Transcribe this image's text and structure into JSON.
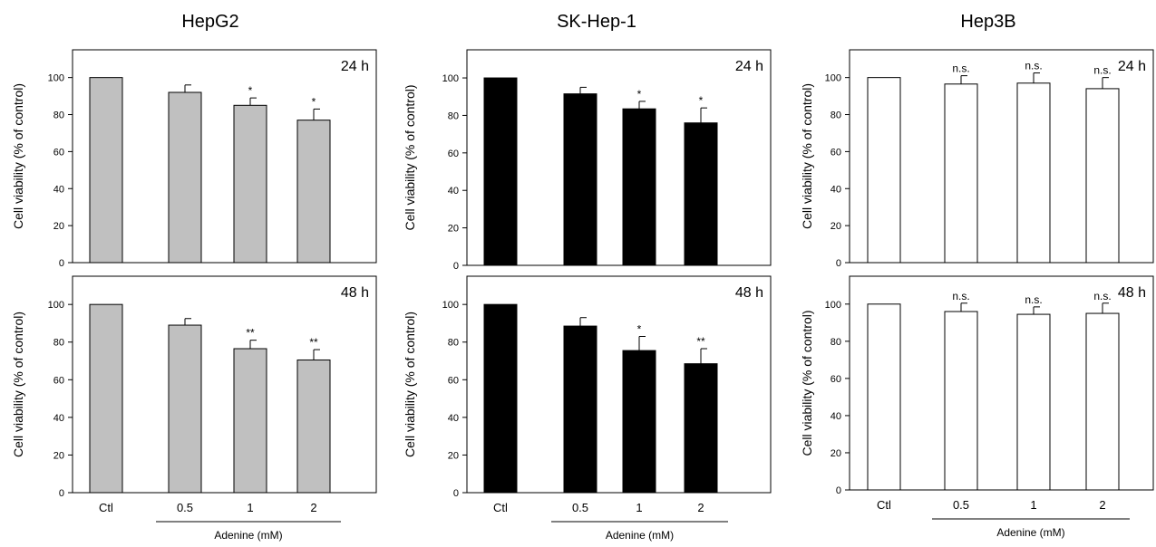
{
  "chart_data": [
    {
      "type": "bar",
      "column_title": "HepG2",
      "time_label": "24 h",
      "categories": [
        "Ctl",
        "0.5",
        "1",
        "2"
      ],
      "values": [
        100,
        92,
        85,
        77
      ],
      "errors": [
        0,
        4,
        4,
        6
      ],
      "significance": [
        "",
        "",
        "*",
        "*"
      ],
      "ylabel": "Cell viability (% of control)",
      "ylim": [
        0,
        115
      ],
      "yticks": [
        0,
        20,
        40,
        60,
        80,
        100
      ],
      "bar_color": "#c0c0c0"
    },
    {
      "type": "bar",
      "column_title": "SK-Hep-1",
      "time_label": "24 h",
      "categories": [
        "Ctl",
        "0.5",
        "1",
        "2"
      ],
      "values": [
        100,
        91.5,
        83.5,
        76
      ],
      "errors": [
        0,
        3.5,
        4,
        8
      ],
      "significance": [
        "",
        "",
        "*",
        "*"
      ],
      "ylabel": "Cell viability (% of control)",
      "ylim": [
        0,
        115
      ],
      "yticks": [
        0,
        20,
        40,
        60,
        80,
        100
      ],
      "bar_color": "#000000"
    },
    {
      "type": "bar",
      "column_title": "Hep3B",
      "time_label": "24 h",
      "categories": [
        "Ctl",
        "0.5",
        "1",
        "2"
      ],
      "values": [
        100,
        96.5,
        97,
        94
      ],
      "errors": [
        0,
        4.5,
        5.5,
        6
      ],
      "significance": [
        "",
        "n.s.",
        "n.s.",
        "n.s."
      ],
      "ylabel": "Cell viability (% of control)",
      "ylim": [
        0,
        115
      ],
      "yticks": [
        0,
        20,
        40,
        60,
        80,
        100
      ],
      "bar_color": "#ffffff"
    },
    {
      "type": "bar",
      "time_label": "48 h",
      "categories": [
        "Ctl",
        "0.5",
        "1",
        "2"
      ],
      "values": [
        100,
        89,
        76.5,
        70.5
      ],
      "errors": [
        0,
        3.5,
        4.5,
        5.5
      ],
      "significance": [
        "",
        "",
        "**",
        "**"
      ],
      "xlabel": "Adenine (mM)",
      "ylabel": "Cell viability (% of control)",
      "ylim": [
        0,
        115
      ],
      "yticks": [
        0,
        20,
        40,
        60,
        80,
        100
      ],
      "bar_color": "#c0c0c0"
    },
    {
      "type": "bar",
      "time_label": "48 h",
      "categories": [
        "Ctl",
        "0.5",
        "1",
        "2"
      ],
      "values": [
        100,
        88.5,
        75.5,
        68.5
      ],
      "errors": [
        0,
        4.5,
        7.5,
        8
      ],
      "significance": [
        "",
        "",
        "*",
        "**"
      ],
      "xlabel": "Adenine (mM)",
      "ylabel": "Cell viability (% of control)",
      "ylim": [
        0,
        115
      ],
      "yticks": [
        0,
        20,
        40,
        60,
        80,
        100
      ],
      "bar_color": "#000000"
    },
    {
      "type": "bar",
      "time_label": "48 h",
      "categories": [
        "Ctl",
        "0.5",
        "1",
        "2"
      ],
      "values": [
        100,
        96,
        94.5,
        95
      ],
      "errors": [
        0,
        4.5,
        4,
        5.5
      ],
      "significance": [
        "",
        "n.s.",
        "n.s.",
        "n.s."
      ],
      "xlabel": "Adenine (mM)",
      "ylabel": "Cell viability (% of control)",
      "ylim": [
        0,
        115
      ],
      "yticks": [
        0,
        20,
        40,
        60,
        80,
        100
      ],
      "bar_color": "#ffffff"
    }
  ]
}
